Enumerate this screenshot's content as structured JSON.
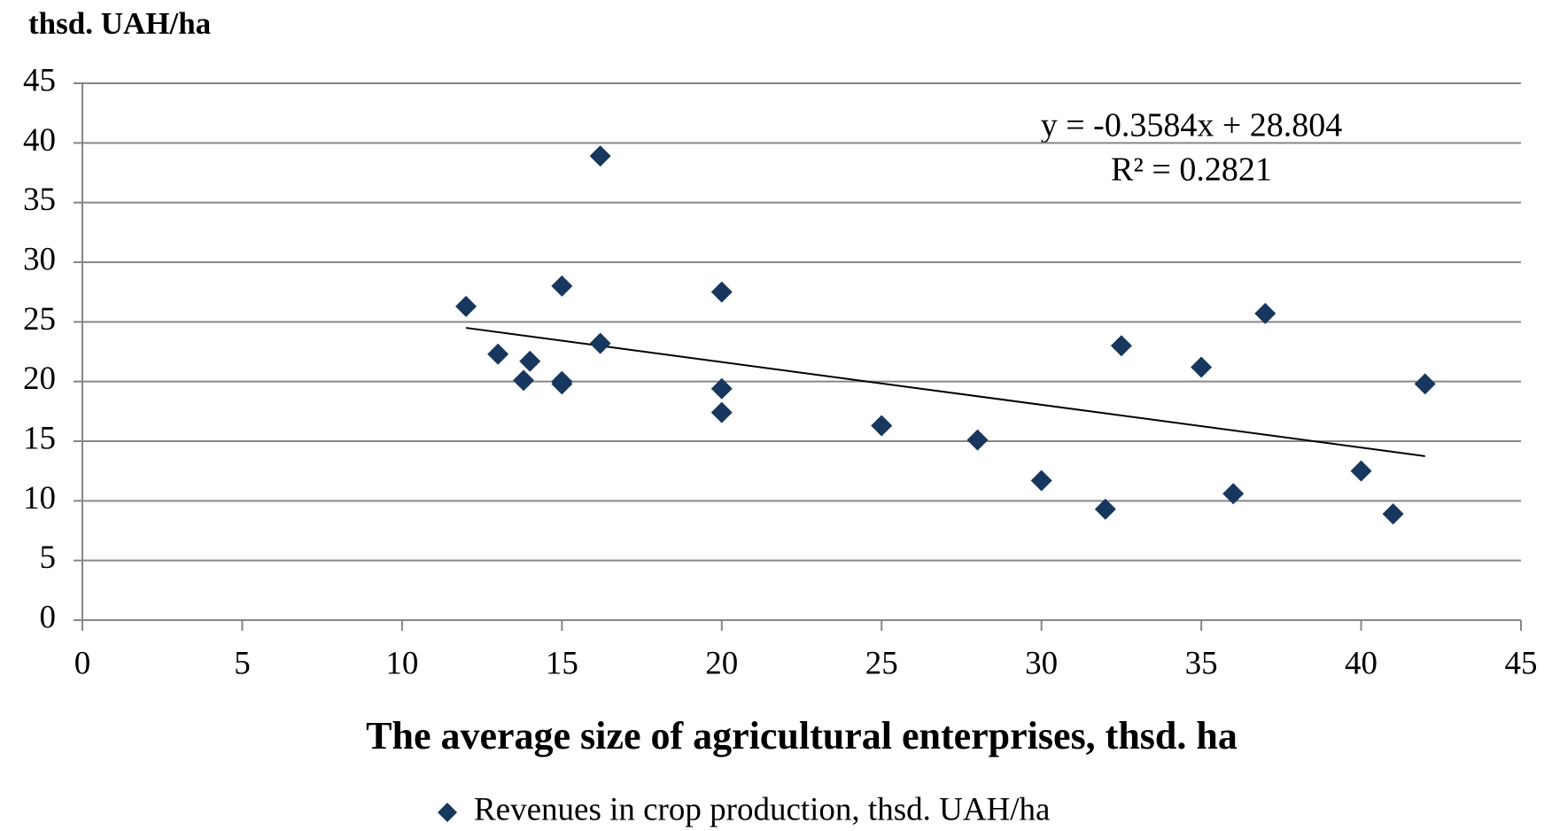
{
  "chart_data": {
    "type": "scatter",
    "y_axis_label": "thsd. UAH/ha",
    "x_axis_label": "The average size of agricultural enterprises, thsd. ha",
    "series": [
      {
        "name": "Revenues in crop production, thsd. UAH/ha",
        "color": "#17375e",
        "x": [
          12,
          13,
          13.8,
          14,
          15,
          15,
          15,
          16.2,
          16.2,
          20,
          20,
          20,
          25,
          28,
          30,
          32,
          32.5,
          35,
          36,
          37,
          40,
          41,
          42
        ],
        "values": [
          26.3,
          22.3,
          20.1,
          21.7,
          28,
          19.8,
          20,
          38.9,
          23.2,
          27.5,
          19.4,
          17.4,
          16.3,
          15.1,
          11.7,
          9.3,
          23,
          21.2,
          10.6,
          25.7,
          12.5,
          8.9,
          19.8
        ]
      }
    ],
    "trendline": {
      "equation": "y = -0.3584x + 28.804",
      "r_squared": "R² = 0.2821",
      "color": "#000000",
      "x": [
        12,
        42
      ],
      "values": [
        24.5,
        13.75
      ]
    },
    "xlim": [
      0,
      45
    ],
    "xticks": [
      0,
      5,
      10,
      15,
      20,
      25,
      30,
      35,
      40,
      45
    ],
    "ylim": [
      0,
      45
    ],
    "yticks": [
      0,
      5,
      10,
      15,
      20,
      25,
      30,
      35,
      40,
      45
    ],
    "grid": true,
    "legend": "bottom"
  }
}
